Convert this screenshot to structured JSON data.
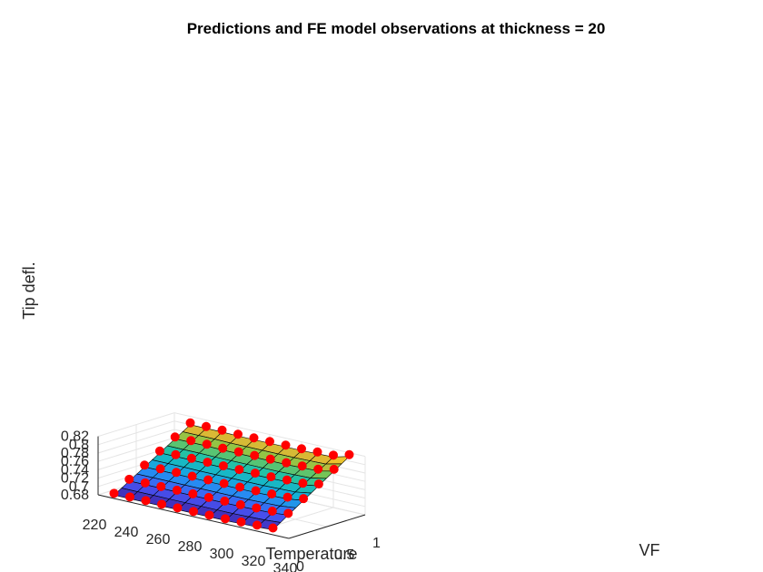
{
  "chart_data": {
    "type": "surface3d",
    "title": "Predictions and FE model observations at thickness = 20",
    "xlabel": "Temperature",
    "ylabel": "VF",
    "zlabel": "Tip defl.",
    "xlim": [
      220,
      340
    ],
    "ylim": [
      0,
      1
    ],
    "zlim": [
      0.68,
      0.82
    ],
    "x_ticks": [
      "220",
      "240",
      "260",
      "280",
      "300",
      "320",
      "340"
    ],
    "y_ticks": [
      "0",
      "0.5",
      "1"
    ],
    "z_ticks": [
      "0.68",
      "0.7",
      "0.72",
      "0.74",
      "0.76",
      "0.78",
      "0.8",
      "0.82"
    ],
    "grid": true,
    "colormap": "parula",
    "surface": {
      "x": [
        230,
        240,
        250,
        260,
        270,
        280,
        290,
        300,
        310,
        320,
        330
      ],
      "y": [
        0,
        0.1,
        0.2,
        0.3,
        0.4,
        0.5,
        0.6,
        0.7,
        0.8,
        0.9,
        1.0
      ],
      "z_at_vf_0": [
        0.688,
        0.688,
        0.688,
        0.688,
        0.688,
        0.688,
        0.688,
        0.688,
        0.689,
        0.69,
        0.692
      ],
      "z_at_vf_1": [
        0.8,
        0.8,
        0.8,
        0.799,
        0.799,
        0.799,
        0.799,
        0.799,
        0.8,
        0.801,
        0.803
      ],
      "end_rise_at_max_temp": 0.008
    },
    "observations": {
      "marker_color": "#ff0000",
      "vf_levels": [
        0,
        0.2,
        0.4,
        0.6,
        0.8,
        1.0
      ],
      "temperatures": [
        230,
        240,
        250,
        260,
        270,
        280,
        290,
        300,
        310,
        320,
        330
      ],
      "note_values": "observations follow the surface (same z as the predicted surface at each point)"
    }
  }
}
